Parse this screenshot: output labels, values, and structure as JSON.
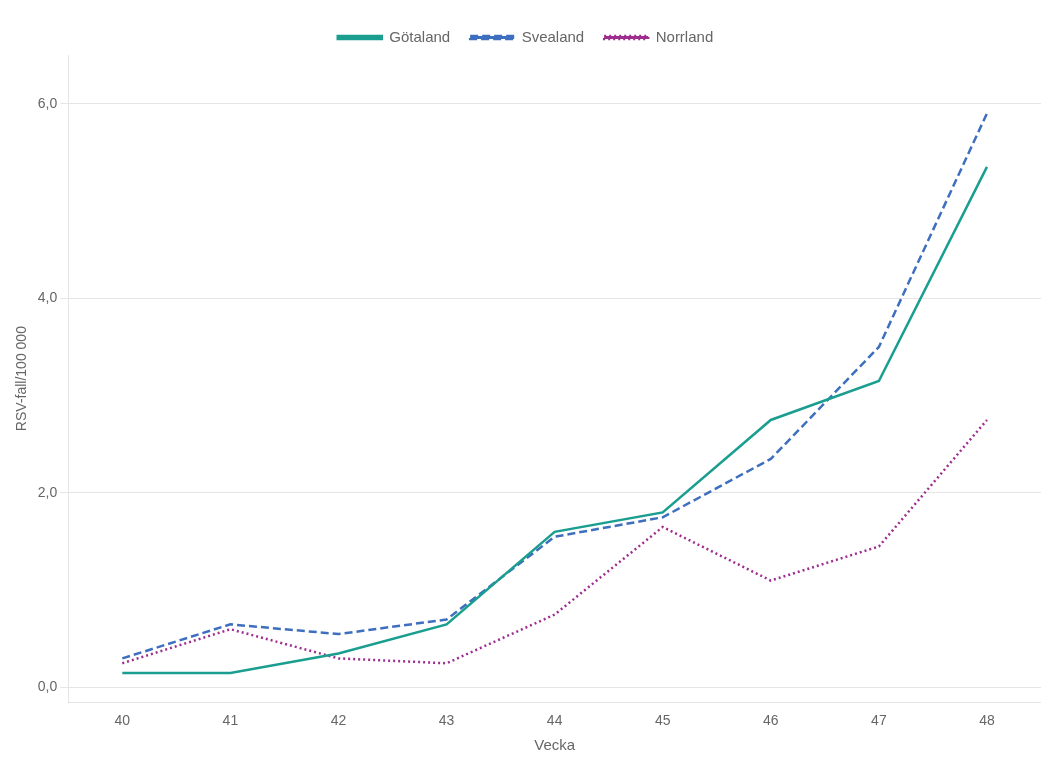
{
  "chart_data": {
    "type": "line",
    "x": [
      40,
      41,
      42,
      43,
      44,
      45,
      46,
      47,
      48
    ],
    "series": [
      {
        "name": "Götaland",
        "color": "#1a9e8f",
        "line_style": "solid",
        "values": [
          0.15,
          0.15,
          0.35,
          0.65,
          1.6,
          1.8,
          2.75,
          3.15,
          5.35
        ]
      },
      {
        "name": "Svealand",
        "color": "#3e6fbf",
        "line_style": "dashed",
        "values": [
          0.3,
          0.65,
          0.55,
          0.7,
          1.55,
          1.75,
          2.35,
          3.5,
          5.9
        ]
      },
      {
        "name": "Norrland",
        "color": "#9e2d8f",
        "line_style": "dotted",
        "values": [
          0.25,
          0.6,
          0.3,
          0.25,
          0.75,
          1.65,
          1.1,
          1.45,
          2.75
        ]
      }
    ],
    "x_label": "Vecka",
    "y_label": "RSV-fall/100 000",
    "xlim": [
      39.5,
      48.5
    ],
    "xticks": [
      40,
      41,
      42,
      43,
      44,
      45,
      46,
      47,
      48
    ],
    "ylim": [
      -0.15,
      6.5
    ],
    "yticks": [
      {
        "value": 0.0,
        "label": "0,0"
      },
      {
        "value": 2.0,
        "label": "2,0"
      },
      {
        "value": 4.0,
        "label": "4,0"
      },
      {
        "value": 6.0,
        "label": "6,0"
      }
    ],
    "grid": "y",
    "legend": "top"
  }
}
